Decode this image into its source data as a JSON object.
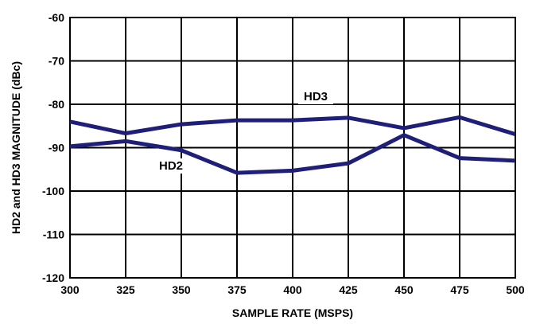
{
  "chart_data": {
    "type": "line",
    "title": "",
    "xlabel": "SAMPLE RATE (MSPS)",
    "ylabel": "HD2 and HD3 MAGNITUDE (dBc)",
    "xlim": [
      300,
      500
    ],
    "ylim": [
      -120,
      -60
    ],
    "x_ticks": [
      "300",
      "325",
      "350",
      "375",
      "400",
      "425",
      "450",
      "475",
      "500"
    ],
    "y_ticks": [
      "-60",
      "-70",
      "-80",
      "-90",
      "-100",
      "-110",
      "-120"
    ],
    "grid": true,
    "line_color": "#1f1f7a",
    "series": [
      {
        "name": "HD3",
        "x": [
          300,
          325,
          350,
          375,
          400,
          425,
          450,
          475,
          500
        ],
        "values": [
          -84.0,
          -86.7,
          -84.6,
          -83.7,
          -83.7,
          -83.1,
          -85.5,
          -83.0,
          -86.9
        ]
      },
      {
        "name": "HD2",
        "x": [
          300,
          325,
          350,
          375,
          400,
          425,
          450,
          475,
          500
        ],
        "values": [
          -89.7,
          -88.5,
          -90.6,
          -95.8,
          -95.3,
          -93.6,
          -87.1,
          -92.4,
          -93.0
        ]
      }
    ]
  }
}
